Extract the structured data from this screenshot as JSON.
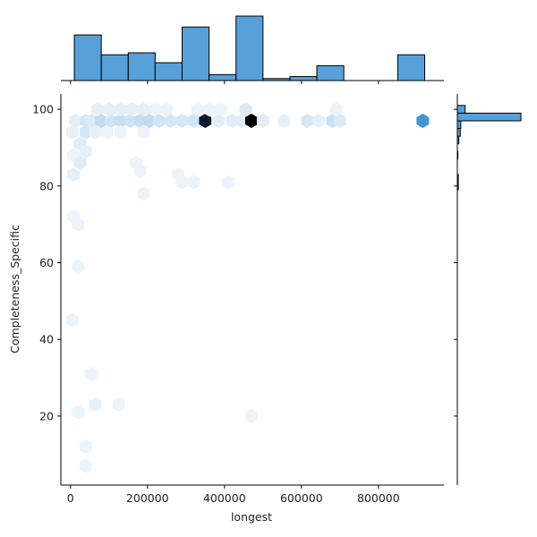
{
  "chart_data": {
    "type": "hexbin-jointplot",
    "xlabel": "longest",
    "ylabel": "Completeness_Specific",
    "xlim": [
      -25000,
      970000
    ],
    "ylim": [
      2,
      104
    ],
    "x_ticks": [
      0,
      200000,
      400000,
      600000,
      800000
    ],
    "x_tick_labels": [
      "0",
      "200000",
      "400000",
      "600000",
      "800000"
    ],
    "y_ticks": [
      20,
      40,
      60,
      80,
      100
    ],
    "y_tick_labels": [
      "20",
      "40",
      "60",
      "80",
      "100"
    ],
    "color": "#3a8fd2",
    "hexbins": [
      {
        "x": 12000,
        "y": 97,
        "count": 2
      },
      {
        "x": 40000,
        "y": 97,
        "count": 5
      },
      {
        "x": 55000,
        "y": 97,
        "count": 4
      },
      {
        "x": 80000,
        "y": 97,
        "count": 9
      },
      {
        "x": 105000,
        "y": 97,
        "count": 6
      },
      {
        "x": 130000,
        "y": 97,
        "count": 8
      },
      {
        "x": 155000,
        "y": 97,
        "count": 6
      },
      {
        "x": 180000,
        "y": 97,
        "count": 8
      },
      {
        "x": 205000,
        "y": 97,
        "count": 9
      },
      {
        "x": 230000,
        "y": 97,
        "count": 6
      },
      {
        "x": 260000,
        "y": 97,
        "count": 5
      },
      {
        "x": 290000,
        "y": 97,
        "count": 5
      },
      {
        "x": 320000,
        "y": 97,
        "count": 6
      },
      {
        "x": 350000,
        "y": 97,
        "count": 40
      },
      {
        "x": 385000,
        "y": 97,
        "count": 3
      },
      {
        "x": 420000,
        "y": 97,
        "count": 3
      },
      {
        "x": 445000,
        "y": 97,
        "count": 3
      },
      {
        "x": 470000,
        "y": 97,
        "count": 46
      },
      {
        "x": 500000,
        "y": 97,
        "count": 3
      },
      {
        "x": 555000,
        "y": 97,
        "count": 2
      },
      {
        "x": 615000,
        "y": 97,
        "count": 5
      },
      {
        "x": 645000,
        "y": 97,
        "count": 2
      },
      {
        "x": 680000,
        "y": 97,
        "count": 7
      },
      {
        "x": 700000,
        "y": 97,
        "count": 4
      },
      {
        "x": 915000,
        "y": 97,
        "count": 20
      },
      {
        "x": 70000,
        "y": 100,
        "count": 2
      },
      {
        "x": 100000,
        "y": 100,
        "count": 2
      },
      {
        "x": 130000,
        "y": 100,
        "count": 2
      },
      {
        "x": 160000,
        "y": 100,
        "count": 2
      },
      {
        "x": 190000,
        "y": 100,
        "count": 2
      },
      {
        "x": 220000,
        "y": 100,
        "count": 1
      },
      {
        "x": 250000,
        "y": 100,
        "count": 1
      },
      {
        "x": 330000,
        "y": 100,
        "count": 1
      },
      {
        "x": 360000,
        "y": 100,
        "count": 1
      },
      {
        "x": 390000,
        "y": 100,
        "count": 1
      },
      {
        "x": 455000,
        "y": 100,
        "count": 4
      },
      {
        "x": 690000,
        "y": 100,
        "count": 1
      },
      {
        "x": 5000,
        "y": 94,
        "count": 2
      },
      {
        "x": 40000,
        "y": 94,
        "count": 5
      },
      {
        "x": 65000,
        "y": 94,
        "count": 2
      },
      {
        "x": 95000,
        "y": 94,
        "count": 1
      },
      {
        "x": 130000,
        "y": 94,
        "count": 1
      },
      {
        "x": 190000,
        "y": 94,
        "count": 1
      },
      {
        "x": 25000,
        "y": 91,
        "count": 3
      },
      {
        "x": 40000,
        "y": 89,
        "count": 2
      },
      {
        "x": 8000,
        "y": 88,
        "count": 1
      },
      {
        "x": 25000,
        "y": 86,
        "count": 3
      },
      {
        "x": 170000,
        "y": 86,
        "count": 1
      },
      {
        "x": 180000,
        "y": 84,
        "count": 1
      },
      {
        "x": 8000,
        "y": 83,
        "count": 2
      },
      {
        "x": 280000,
        "y": 83,
        "count": 1
      },
      {
        "x": 290000,
        "y": 81,
        "count": 1
      },
      {
        "x": 320000,
        "y": 81,
        "count": 1
      },
      {
        "x": 410000,
        "y": 81,
        "count": 1
      },
      {
        "x": 190000,
        "y": 78,
        "count": 1
      },
      {
        "x": 8000,
        "y": 72,
        "count": 1
      },
      {
        "x": 20000,
        "y": 70,
        "count": 1
      },
      {
        "x": 20000,
        "y": 59,
        "count": 1
      },
      {
        "x": 5000,
        "y": 45,
        "count": 1
      },
      {
        "x": 55000,
        "y": 31,
        "count": 1
      },
      {
        "x": 65000,
        "y": 23,
        "count": 2
      },
      {
        "x": 125000,
        "y": 23,
        "count": 1
      },
      {
        "x": 20000,
        "y": 21,
        "count": 1
      },
      {
        "x": 470000,
        "y": 20,
        "count": 1
      },
      {
        "x": 40000,
        "y": 12,
        "count": 1
      },
      {
        "x": 40000,
        "y": 7,
        "count": 1
      }
    ],
    "x_marginal": {
      "bin_edges": [
        10000,
        80000,
        150000,
        220000,
        290000,
        360000,
        430000,
        500000,
        570000,
        640000,
        710000,
        780000,
        850000,
        920000
      ],
      "counts": [
        46,
        26,
        28,
        18,
        54,
        6,
        65,
        2,
        4,
        15,
        0,
        0,
        26
      ]
    },
    "y_marginal": {
      "bin_edges": [
        79,
        81,
        83,
        85,
        87,
        89,
        91,
        93,
        95,
        97,
        99,
        101
      ],
      "counts": [
        2,
        2,
        0,
        0,
        1,
        0,
        3,
        6,
        7,
        130,
        16
      ]
    }
  }
}
